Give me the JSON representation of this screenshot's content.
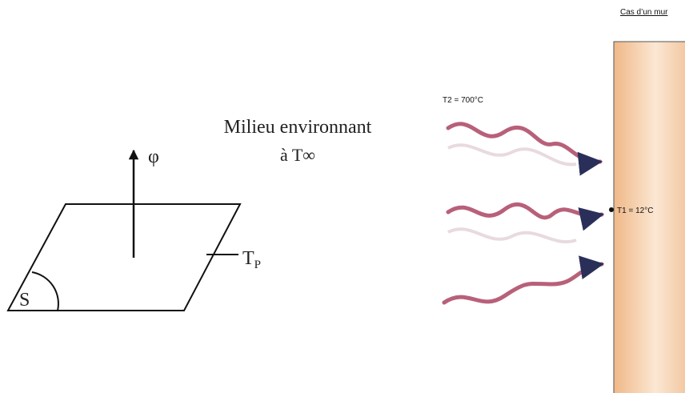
{
  "left": {
    "medium_line1": "Milieu environnant",
    "medium_line2": "à T∞",
    "flux": "φ",
    "surface_temp": {
      "main": "T",
      "sub": "P"
    },
    "surface": "S"
  },
  "right": {
    "title": "Cas d’un mur",
    "hot_side": "T2 = 700°C",
    "wall_point": "T1 = 12°C"
  }
}
